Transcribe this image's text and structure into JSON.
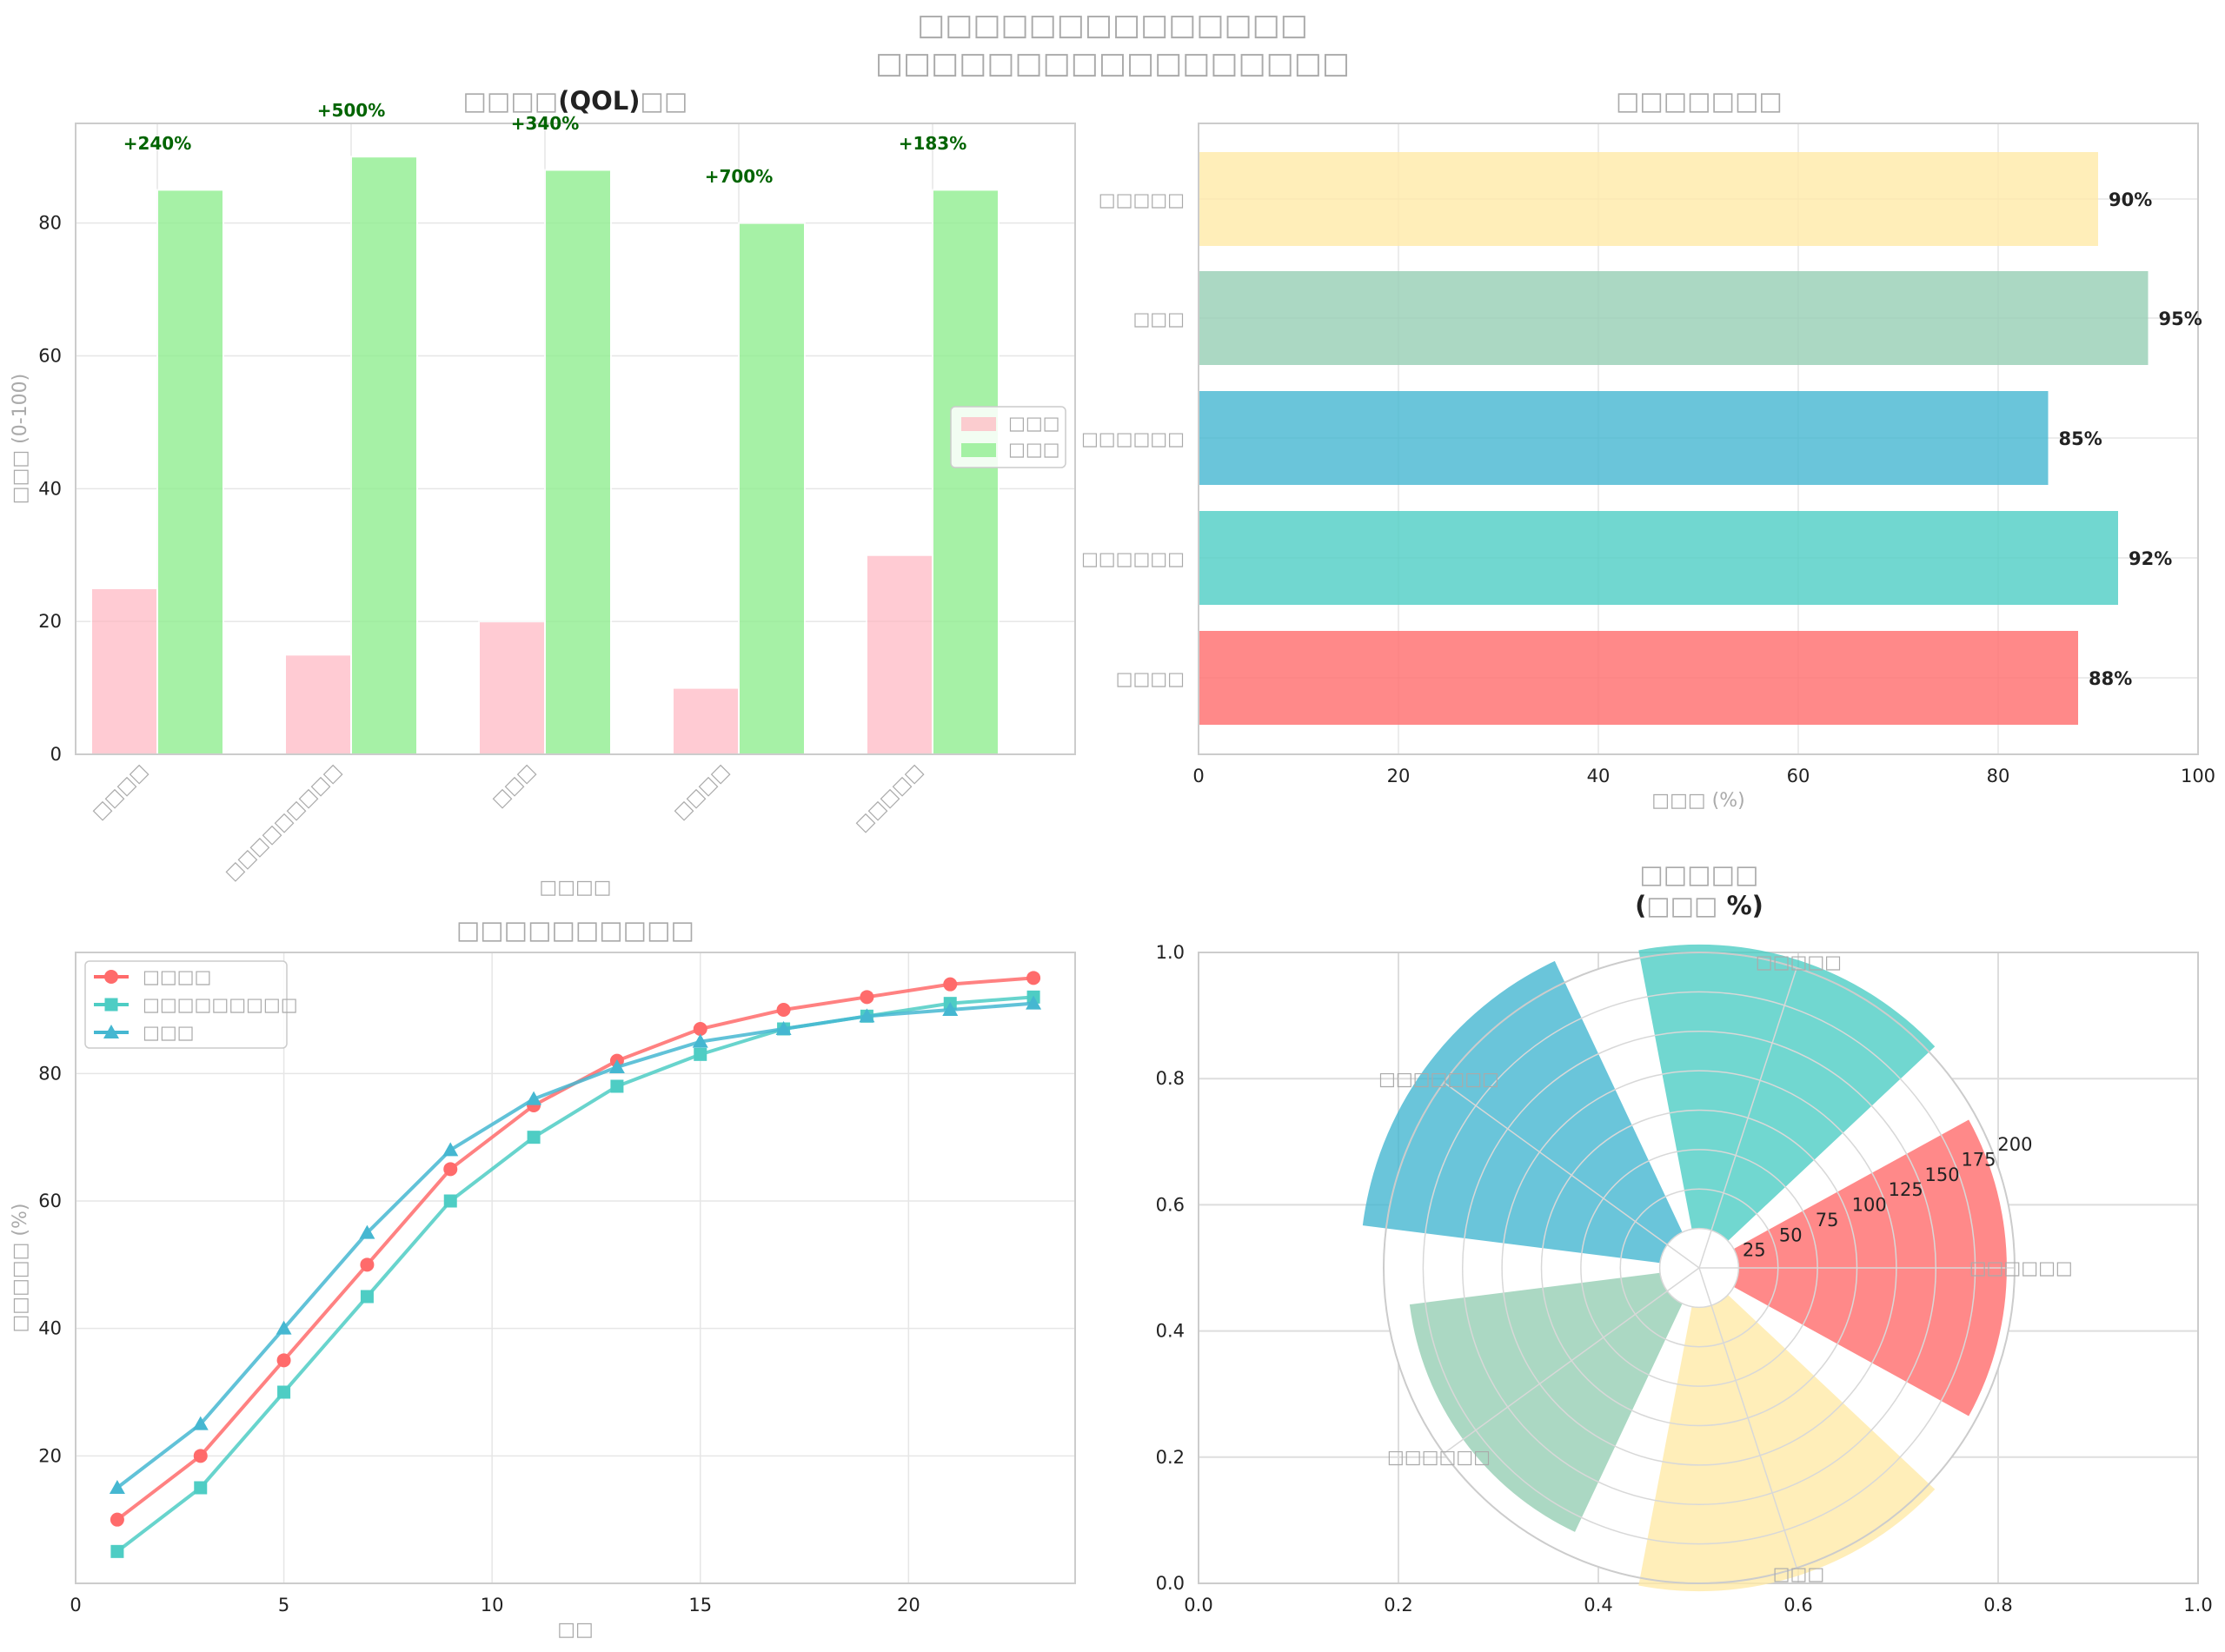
{
  "suptitle": [
    "□□□□□□□□□□□□□□",
    "□□□□□□□□□□□□□□□□□"
  ],
  "colors": {
    "before": "#ffb6c1",
    "after": "#90ee90",
    "pct_text": "#006400",
    "red": "#ff6b6b",
    "teal": "#4ecdc4",
    "blue": "#45b7d1",
    "green": "#96ceb4",
    "yellow": "#ffeaa7",
    "grid": "#e6e6e6",
    "axis": "#cccccc",
    "text": "#222222",
    "label": "#aaaaaa"
  },
  "chart_data": [
    {
      "id": "qol",
      "type": "bar",
      "title_prefix": "□□□□",
      "title_bold": "(QOL)",
      "title_suffix": "□□",
      "xlabel": "□□□□",
      "ylabel": "□□□ (0-100)",
      "categories": [
        "□□□□",
        "□□□□□□□□□",
        "□□□",
        "□□□□",
        "□□□□□"
      ],
      "series": [
        {
          "name": "□□□",
          "values": [
            25,
            15,
            20,
            10,
            30
          ]
        },
        {
          "name": "□□□",
          "values": [
            85,
            90,
            88,
            80,
            85
          ]
        }
      ],
      "annotations": [
        "+240%",
        "+500%",
        "+340%",
        "+700%",
        "+183%"
      ],
      "ylim": [
        0,
        95
      ],
      "yticks": [
        0,
        20,
        40,
        60,
        80
      ],
      "legend": "center-right"
    },
    {
      "id": "success",
      "type": "bar",
      "orientation": "horizontal",
      "title": "□□□□□□□",
      "xlabel": "□□□ (%)",
      "categories": [
        "□□□□",
        "□□□□□□",
        "□□□□□□",
        "□□□",
        "□□□□□"
      ],
      "values": [
        88,
        92,
        85,
        95,
        90
      ],
      "value_labels": [
        "88%",
        "92%",
        "85%",
        "95%",
        "90%"
      ],
      "xlim": [
        0,
        100
      ],
      "xticks": [
        0,
        20,
        40,
        60,
        80,
        100
      ]
    },
    {
      "id": "recovery",
      "type": "line",
      "title": "□□□□□□□□□□",
      "xlabel": "□□",
      "ylabel": "□□□□□ (%)",
      "x": [
        1,
        3,
        5,
        7,
        9,
        11,
        13,
        15,
        17,
        19,
        21,
        23
      ],
      "series": [
        {
          "name": "□□□□",
          "marker": "circle",
          "values": [
            10,
            20,
            35,
            50,
            65,
            75,
            82,
            87,
            90,
            92,
            94,
            95
          ]
        },
        {
          "name": "□□□□□□□□□",
          "marker": "square",
          "values": [
            5,
            15,
            30,
            45,
            60,
            70,
            78,
            83,
            87,
            89,
            91,
            92
          ]
        },
        {
          "name": "□□□",
          "marker": "triangle",
          "values": [
            15,
            25,
            40,
            55,
            68,
            76,
            81,
            85,
            87,
            89,
            90,
            91
          ]
        }
      ],
      "xlim": [
        0,
        24
      ],
      "ylim": [
        0,
        99
      ],
      "xticks": [
        0,
        5,
        10,
        15,
        20
      ],
      "yticks": [
        20,
        40,
        60,
        80
      ],
      "legend": "top-left"
    },
    {
      "id": "polar",
      "type": "polar-bar",
      "title_line1": "□□□□□",
      "title_line2_open": "(",
      "title_line2_mid": "□□□ ",
      "title_line2_close": "%)",
      "categories": [
        "□□□□□□",
        "□□□□□",
        "□□□□□□□",
        "□□□□□□",
        "□□□"
      ],
      "values": [
        170,
        180,
        190,
        160,
        180
      ],
      "bottom": 25,
      "rmax": 200,
      "rticks": [
        25,
        50,
        75,
        100,
        125,
        150,
        175,
        200
      ],
      "frame_ticks": [
        "0.0",
        "0.2",
        "0.4",
        "0.6",
        "0.8",
        "1.0"
      ]
    }
  ]
}
